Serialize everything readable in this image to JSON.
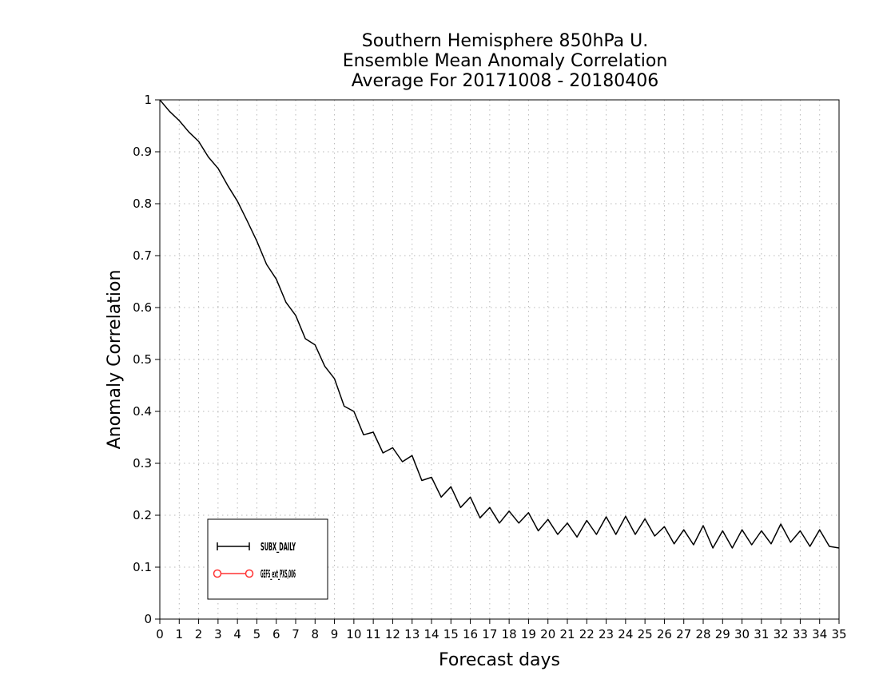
{
  "chart_data": {
    "type": "line",
    "title": [
      "Southern Hemisphere 850hPa U.",
      "Ensemble Mean Anomaly Correlation",
      "Average For 20171008 - 20180406"
    ],
    "xlabel": "Forecast days",
    "ylabel": "Anomaly Correlation",
    "xlim": [
      0,
      35
    ],
    "ylim": [
      0,
      1
    ],
    "xticks": [
      "0",
      "1",
      "2",
      "3",
      "4",
      "5",
      "6",
      "7",
      "8",
      "9",
      "10",
      "11",
      "12",
      "13",
      "14",
      "15",
      "16",
      "17",
      "18",
      "19",
      "20",
      "21",
      "22",
      "23",
      "24",
      "25",
      "26",
      "27",
      "28",
      "29",
      "30",
      "31",
      "32",
      "33",
      "34",
      "35"
    ],
    "yticks": [
      "0",
      "0.1",
      "0.2",
      "0.3",
      "0.4",
      "0.5",
      "0.6",
      "0.7",
      "0.8",
      "0.9",
      "1"
    ],
    "grid": true,
    "legend_position": "bottom-left",
    "series": [
      {
        "name": "SUBX_DAILY",
        "color": "#000000",
        "marker": "plus",
        "x": [
          0,
          0.5,
          1,
          1.5,
          2,
          2.5,
          3,
          3.5,
          4,
          4.5,
          5,
          5.5,
          6,
          6.5,
          7,
          7.5,
          8,
          8.5,
          9,
          9.5,
          10,
          10.5,
          11,
          11.5,
          12,
          12.5,
          13,
          13.5,
          14,
          14.5,
          15,
          15.5,
          16,
          16.5,
          17,
          17.5,
          18,
          18.5,
          19,
          19.5,
          20,
          20.5,
          21,
          21.5,
          22,
          22.5,
          23,
          23.5,
          24,
          24.5,
          25,
          25.5,
          26,
          26.5,
          27,
          27.5,
          28,
          28.5,
          29,
          29.5,
          30,
          30.5,
          31,
          31.5,
          32,
          32.5,
          33,
          33.5,
          34,
          34.5,
          35
        ],
        "y": [
          1.0,
          0.978,
          0.96,
          0.938,
          0.92,
          0.89,
          0.868,
          0.835,
          0.805,
          0.767,
          0.728,
          0.683,
          0.655,
          0.61,
          0.585,
          0.54,
          0.528,
          0.487,
          0.463,
          0.41,
          0.4,
          0.355,
          0.36,
          0.32,
          0.33,
          0.303,
          0.315,
          0.267,
          0.273,
          0.235,
          0.255,
          0.215,
          0.235,
          0.195,
          0.215,
          0.185,
          0.208,
          0.185,
          0.205,
          0.17,
          0.192,
          0.163,
          0.185,
          0.158,
          0.19,
          0.163,
          0.197,
          0.163,
          0.198,
          0.163,
          0.193,
          0.16,
          0.178,
          0.145,
          0.172,
          0.143,
          0.18,
          0.137,
          0.17,
          0.137,
          0.172,
          0.143,
          0.17,
          0.145,
          0.183,
          0.148,
          0.17,
          0.14,
          0.172,
          0.14,
          0.137
        ]
      },
      {
        "name": "GEFS_ext_PXS,006",
        "color": "#ff3333",
        "marker": "circle",
        "x": [],
        "y": []
      }
    ]
  }
}
